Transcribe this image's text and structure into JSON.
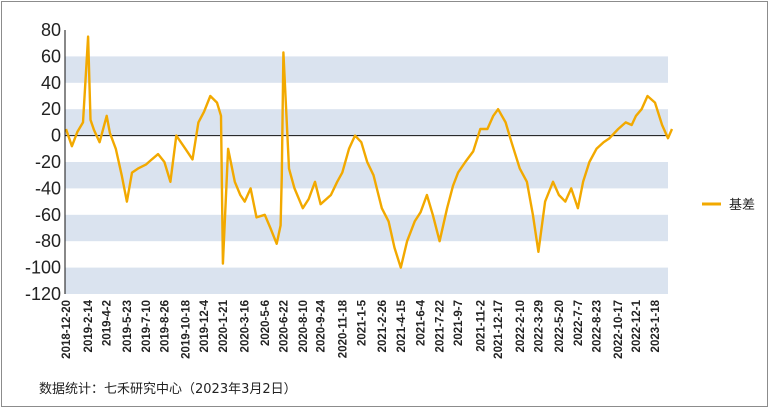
{
  "chart_data": {
    "type": "line",
    "title": "",
    "xlabel": "",
    "ylabel": "",
    "ylim": [
      -120,
      80
    ],
    "yticks": [
      80,
      60,
      40,
      20,
      0,
      -20,
      -40,
      -60,
      -80,
      -100,
      -120
    ],
    "grid": "alternating horizontal bands",
    "legend_position": "right",
    "x_tick_labels": [
      "2018-12-20",
      "2019-2-14",
      "2019-4-2",
      "2019-5-23",
      "2019-7-10",
      "2019-8-26",
      "2019-10-18",
      "2019-12-4",
      "2020-1-21",
      "2020-3-16",
      "2020-5-6",
      "2020-6-22",
      "2020-8-10",
      "2020-9-24",
      "2020-11-18",
      "2021-1-5",
      "2021-2-26",
      "2021-4-15",
      "2021-6-4",
      "2021-7-22",
      "2021-9-7",
      "2021-11-2",
      "2021-12-17",
      "2022-2-10",
      "2022-3-29",
      "2022-5-20",
      "2022-7-7",
      "2022-8-23",
      "2022-10-17",
      "2022-12-1",
      "2023-1-18"
    ],
    "series": [
      {
        "name": "基差",
        "color": "#F2A900",
        "x": [
          "2018-12-20",
          "2019-1-4",
          "2019-1-18",
          "2019-2-1",
          "2019-2-14",
          "2019-2-20",
          "2019-3-1",
          "2019-3-15",
          "2019-4-2",
          "2019-4-10",
          "2019-4-25",
          "2019-5-10",
          "2019-5-23",
          "2019-6-5",
          "2019-6-20",
          "2019-7-10",
          "2019-7-25",
          "2019-8-10",
          "2019-8-26",
          "2019-9-10",
          "2019-9-25",
          "2019-10-18",
          "2019-11-5",
          "2019-11-20",
          "2019-12-4",
          "2019-12-20",
          "2020-1-6",
          "2020-1-16",
          "2020-1-21",
          "2020-2-3",
          "2020-2-20",
          "2020-3-5",
          "2020-3-16",
          "2020-3-31",
          "2020-4-15",
          "2020-5-6",
          "2020-5-20",
          "2020-6-5",
          "2020-6-15",
          "2020-6-18",
          "2020-6-22",
          "2020-7-6",
          "2020-7-20",
          "2020-8-10",
          "2020-8-25",
          "2020-9-10",
          "2020-9-24",
          "2020-10-20",
          "2020-11-5",
          "2020-11-18",
          "2020-12-5",
          "2020-12-20",
          "2021-1-5",
          "2021-1-20",
          "2021-2-5",
          "2021-2-26",
          "2021-3-15",
          "2021-3-30",
          "2021-4-15",
          "2021-5-1",
          "2021-5-20",
          "2021-6-4",
          "2021-6-20",
          "2021-7-5",
          "2021-7-22",
          "2021-8-10",
          "2021-8-25",
          "2021-9-7",
          "2021-9-25",
          "2021-10-15",
          "2021-11-2",
          "2021-11-20",
          "2021-12-5",
          "2021-12-17",
          "2022-1-5",
          "2022-1-20",
          "2022-2-10",
          "2022-2-28",
          "2022-3-15",
          "2022-3-29",
          "2022-4-15",
          "2022-5-5",
          "2022-5-20",
          "2022-6-5",
          "2022-6-20",
          "2022-7-7",
          "2022-7-20",
          "2022-8-5",
          "2022-8-23",
          "2022-9-10",
          "2022-9-25",
          "2022-10-17",
          "2022-11-5",
          "2022-11-20",
          "2022-12-1",
          "2022-12-15",
          "2022-12-30",
          "2023-1-18",
          "2023-2-5",
          "2023-2-20",
          "2023-3-2"
        ],
        "values": [
          5,
          -8,
          3,
          10,
          75,
          12,
          4,
          -5,
          15,
          2,
          -10,
          -30,
          -50,
          -28,
          -25,
          -22,
          -18,
          -14,
          -20,
          -35,
          0,
          -10,
          -18,
          10,
          18,
          30,
          25,
          15,
          -97,
          -10,
          -35,
          -45,
          -50,
          -40,
          -62,
          -60,
          -70,
          -82,
          -68,
          -30,
          63,
          -25,
          -40,
          -55,
          -48,
          -35,
          -52,
          -45,
          -35,
          -28,
          -10,
          0,
          -5,
          -20,
          -30,
          -55,
          -65,
          -85,
          -100,
          -80,
          -65,
          -58,
          -45,
          -60,
          -80,
          -55,
          -38,
          -28,
          -20,
          -12,
          5,
          5,
          15,
          20,
          10,
          -5,
          -25,
          -35,
          -60,
          -88,
          -50,
          -35,
          -45,
          -50,
          -40,
          -55,
          -35,
          -20,
          -10,
          -5,
          -2,
          5,
          10,
          8,
          15,
          20,
          30,
          25,
          8,
          -2,
          5
        ]
      }
    ]
  },
  "legend": {
    "label": "基差"
  },
  "source_note": "数据统计：七禾研究中心（2023年3月2日）"
}
